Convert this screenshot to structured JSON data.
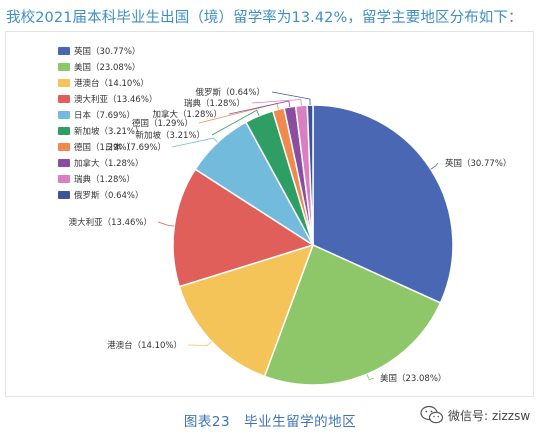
{
  "headline": "我校2021届本科毕业生出国（境）留学率为13.42%，留学主要地区分布如下：",
  "caption": "图表23　毕业生留学的地区",
  "watermark": {
    "icon": "wechat-icon",
    "text": "微信号: zizzsw"
  },
  "chart_data": {
    "type": "pie",
    "title": "",
    "legend_position": "top-left",
    "slices": [
      {
        "label": "英国",
        "value": 30.77,
        "display": "30.77%",
        "color": "#4a67b4"
      },
      {
        "label": "美国",
        "value": 23.08,
        "display": "23.08%",
        "color": "#8ec76a"
      },
      {
        "label": "港澳台",
        "value": 14.1,
        "display": "14.10%",
        "color": "#f4c458"
      },
      {
        "label": "澳大利亚",
        "value": 13.46,
        "display": "13.46%",
        "color": "#e15f5a"
      },
      {
        "label": "日本",
        "value": 7.69,
        "display": "7.69%",
        "color": "#73bbdc"
      },
      {
        "label": "新加坡",
        "value": 3.21,
        "display": "3.21%",
        "color": "#2e9e65"
      },
      {
        "label": "德国",
        "value": 1.29,
        "display": "1.29%",
        "color": "#ef8a4c"
      },
      {
        "label": "加拿大",
        "value": 1.28,
        "display": "1.28%",
        "color": "#8a4da1"
      },
      {
        "label": "瑞典",
        "value": 1.28,
        "display": "1.28%",
        "color": "#d97fc2"
      },
      {
        "label": "俄罗斯",
        "value": 0.64,
        "display": "0.64%",
        "color": "#3b5499"
      }
    ]
  }
}
